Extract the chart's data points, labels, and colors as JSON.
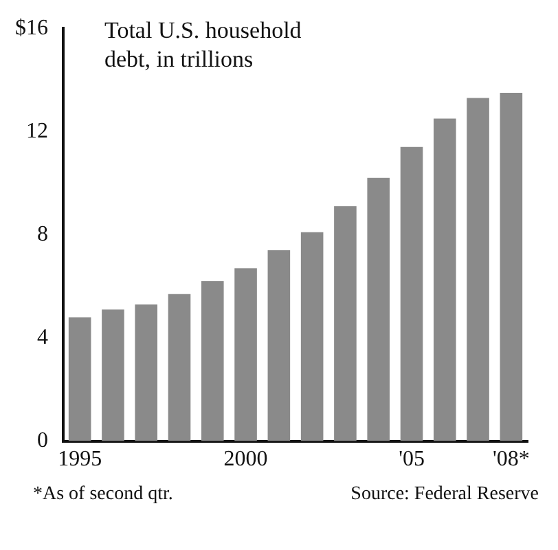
{
  "chart_data": {
    "type": "bar",
    "title": "Total U.S. household debt, in trillions",
    "categories": [
      "1995",
      null,
      null,
      null,
      null,
      "2000",
      null,
      null,
      null,
      null,
      "'05",
      null,
      null,
      "'08*"
    ],
    "values": [
      4.8,
      5.1,
      5.3,
      5.7,
      6.2,
      6.7,
      7.4,
      8.1,
      9.1,
      10.2,
      11.4,
      12.5,
      13.3,
      13.5
    ],
    "color": "#8a8a8a",
    "ylim": [
      0,
      16
    ],
    "yticks": [
      0,
      4,
      8,
      12,
      {
        "value": 16,
        "label": "$16"
      }
    ],
    "grid": false,
    "annotations": [
      "*As of second qtr.",
      "Source: Federal Reserve"
    ]
  }
}
